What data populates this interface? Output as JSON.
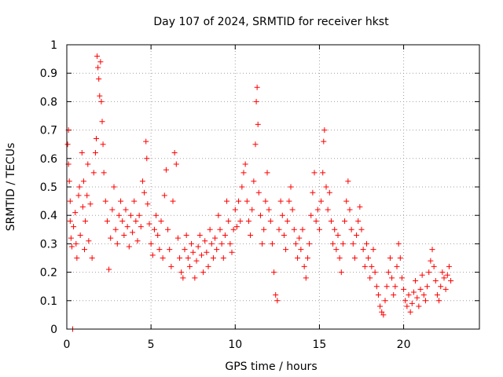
{
  "chart_data": {
    "type": "scatter",
    "title": "Day 107 of 2024, SRMTID for receiver hkst",
    "xlabel": "GPS time / hours",
    "ylabel": "SRMTID / TECUs",
    "xlim": [
      0,
      24.5
    ],
    "ylim": [
      0,
      1
    ],
    "grid": true,
    "marker": "+",
    "color": "#ff0000",
    "x_ticks": [
      {
        "value": 0,
        "label": "0"
      },
      {
        "value": 5,
        "label": "5"
      },
      {
        "value": 10,
        "label": "10"
      },
      {
        "value": 15,
        "label": "15"
      },
      {
        "value": 20,
        "label": "20"
      }
    ],
    "y_ticks": [
      {
        "value": 0,
        "label": "0"
      },
      {
        "value": 0.1,
        "label": "0.1"
      },
      {
        "value": 0.2,
        "label": "0.2"
      },
      {
        "value": 0.3,
        "label": "0.3"
      },
      {
        "value": 0.4,
        "label": "0.4"
      },
      {
        "value": 0.5,
        "label": "0.5"
      },
      {
        "value": 0.6,
        "label": "0.6"
      },
      {
        "value": 0.7,
        "label": "0.7"
      },
      {
        "value": 0.8,
        "label": "0.8"
      },
      {
        "value": 0.9,
        "label": "0.9"
      },
      {
        "value": 1,
        "label": "1"
      }
    ],
    "series": [
      {
        "name": "SRMTID",
        "points": [
          [
            0.05,
            0.65
          ],
          [
            0.1,
            0.7
          ],
          [
            0.1,
            0.58
          ],
          [
            0.15,
            0.52
          ],
          [
            0.2,
            0.45
          ],
          [
            0.2,
            0.38
          ],
          [
            0.25,
            0.32
          ],
          [
            0.3,
            0.29
          ],
          [
            0.35,
            0.0
          ],
          [
            0.4,
            0.36
          ],
          [
            0.5,
            0.41
          ],
          [
            0.55,
            0.3
          ],
          [
            0.6,
            0.25
          ],
          [
            0.7,
            0.47
          ],
          [
            0.75,
            0.5
          ],
          [
            0.8,
            0.33
          ],
          [
            0.9,
            0.62
          ],
          [
            0.95,
            0.43
          ],
          [
            1.0,
            0.52
          ],
          [
            1.05,
            0.28
          ],
          [
            1.1,
            0.38
          ],
          [
            1.2,
            0.47
          ],
          [
            1.25,
            0.58
          ],
          [
            1.3,
            0.31
          ],
          [
            1.4,
            0.44
          ],
          [
            1.5,
            0.25
          ],
          [
            1.6,
            0.55
          ],
          [
            1.7,
            0.62
          ],
          [
            1.75,
            0.67
          ],
          [
            1.8,
            0.96
          ],
          [
            1.85,
            0.92
          ],
          [
            1.9,
            0.88
          ],
          [
            1.95,
            0.82
          ],
          [
            2.0,
            0.94
          ],
          [
            2.05,
            0.8
          ],
          [
            2.1,
            0.73
          ],
          [
            2.15,
            0.65
          ],
          [
            2.2,
            0.55
          ],
          [
            2.3,
            0.45
          ],
          [
            2.4,
            0.38
          ],
          [
            2.5,
            0.21
          ],
          [
            2.6,
            0.32
          ],
          [
            2.7,
            0.42
          ],
          [
            2.8,
            0.5
          ],
          [
            2.9,
            0.35
          ],
          [
            3.0,
            0.3
          ],
          [
            3.1,
            0.4
          ],
          [
            3.2,
            0.45
          ],
          [
            3.3,
            0.38
          ],
          [
            3.4,
            0.33
          ],
          [
            3.5,
            0.42
          ],
          [
            3.6,
            0.36
          ],
          [
            3.7,
            0.29
          ],
          [
            3.8,
            0.4
          ],
          [
            3.9,
            0.34
          ],
          [
            4.0,
            0.45
          ],
          [
            4.1,
            0.38
          ],
          [
            4.2,
            0.31
          ],
          [
            4.3,
            0.4
          ],
          [
            4.4,
            0.36
          ],
          [
            4.5,
            0.52
          ],
          [
            4.6,
            0.48
          ],
          [
            4.7,
            0.66
          ],
          [
            4.75,
            0.6
          ],
          [
            4.8,
            0.44
          ],
          [
            4.9,
            0.37
          ],
          [
            5.0,
            0.3
          ],
          [
            5.1,
            0.26
          ],
          [
            5.2,
            0.35
          ],
          [
            5.3,
            0.4
          ],
          [
            5.4,
            0.33
          ],
          [
            5.5,
            0.28
          ],
          [
            5.6,
            0.38
          ],
          [
            5.7,
            0.25
          ],
          [
            5.8,
            0.47
          ],
          [
            5.9,
            0.56
          ],
          [
            6.0,
            0.35
          ],
          [
            6.1,
            0.28
          ],
          [
            6.2,
            0.22
          ],
          [
            6.3,
            0.45
          ],
          [
            6.4,
            0.62
          ],
          [
            6.5,
            0.58
          ],
          [
            6.6,
            0.32
          ],
          [
            6.7,
            0.25
          ],
          [
            6.8,
            0.2
          ],
          [
            6.9,
            0.18
          ],
          [
            7.0,
            0.28
          ],
          [
            7.1,
            0.33
          ],
          [
            7.2,
            0.25
          ],
          [
            7.3,
            0.22
          ],
          [
            7.4,
            0.3
          ],
          [
            7.5,
            0.27
          ],
          [
            7.6,
            0.18
          ],
          [
            7.7,
            0.24
          ],
          [
            7.8,
            0.29
          ],
          [
            7.9,
            0.33
          ],
          [
            8.0,
            0.26
          ],
          [
            8.1,
            0.2
          ],
          [
            8.2,
            0.31
          ],
          [
            8.3,
            0.27
          ],
          [
            8.4,
            0.22
          ],
          [
            8.5,
            0.35
          ],
          [
            8.6,
            0.3
          ],
          [
            8.7,
            0.25
          ],
          [
            8.8,
            0.32
          ],
          [
            8.9,
            0.28
          ],
          [
            9.0,
            0.4
          ],
          [
            9.1,
            0.35
          ],
          [
            9.2,
            0.3
          ],
          [
            9.3,
            0.25
          ],
          [
            9.4,
            0.33
          ],
          [
            9.5,
            0.45
          ],
          [
            9.6,
            0.38
          ],
          [
            9.7,
            0.3
          ],
          [
            9.8,
            0.27
          ],
          [
            9.9,
            0.35
          ],
          [
            10.0,
            0.42
          ],
          [
            10.1,
            0.36
          ],
          [
            10.2,
            0.45
          ],
          [
            10.3,
            0.38
          ],
          [
            10.4,
            0.5
          ],
          [
            10.5,
            0.55
          ],
          [
            10.6,
            0.58
          ],
          [
            10.7,
            0.45
          ],
          [
            10.8,
            0.38
          ],
          [
            10.9,
            0.33
          ],
          [
            11.0,
            0.42
          ],
          [
            11.1,
            0.52
          ],
          [
            11.2,
            0.65
          ],
          [
            11.25,
            0.8
          ],
          [
            11.3,
            0.85
          ],
          [
            11.35,
            0.72
          ],
          [
            11.4,
            0.48
          ],
          [
            11.5,
            0.4
          ],
          [
            11.6,
            0.3
          ],
          [
            11.7,
            0.35
          ],
          [
            11.8,
            0.45
          ],
          [
            11.9,
            0.55
          ],
          [
            12.0,
            0.42
          ],
          [
            12.1,
            0.38
          ],
          [
            12.2,
            0.3
          ],
          [
            12.3,
            0.2
          ],
          [
            12.4,
            0.12
          ],
          [
            12.5,
            0.1
          ],
          [
            12.6,
            0.35
          ],
          [
            12.7,
            0.45
          ],
          [
            12.8,
            0.4
          ],
          [
            12.9,
            0.33
          ],
          [
            13.0,
            0.28
          ],
          [
            13.1,
            0.38
          ],
          [
            13.2,
            0.45
          ],
          [
            13.3,
            0.5
          ],
          [
            13.4,
            0.42
          ],
          [
            13.5,
            0.35
          ],
          [
            13.6,
            0.3
          ],
          [
            13.7,
            0.25
          ],
          [
            13.8,
            0.32
          ],
          [
            13.9,
            0.28
          ],
          [
            14.0,
            0.35
          ],
          [
            14.1,
            0.22
          ],
          [
            14.2,
            0.18
          ],
          [
            14.3,
            0.25
          ],
          [
            14.4,
            0.3
          ],
          [
            14.5,
            0.4
          ],
          [
            14.6,
            0.48
          ],
          [
            14.7,
            0.55
          ],
          [
            14.8,
            0.38
          ],
          [
            14.9,
            0.42
          ],
          [
            15.0,
            0.35
          ],
          [
            15.1,
            0.45
          ],
          [
            15.2,
            0.55
          ],
          [
            15.25,
            0.66
          ],
          [
            15.3,
            0.7
          ],
          [
            15.4,
            0.5
          ],
          [
            15.5,
            0.42
          ],
          [
            15.6,
            0.48
          ],
          [
            15.7,
            0.38
          ],
          [
            15.8,
            0.3
          ],
          [
            15.9,
            0.35
          ],
          [
            16.0,
            0.28
          ],
          [
            16.1,
            0.33
          ],
          [
            16.2,
            0.25
          ],
          [
            16.3,
            0.2
          ],
          [
            16.4,
            0.3
          ],
          [
            16.5,
            0.38
          ],
          [
            16.6,
            0.45
          ],
          [
            16.7,
            0.52
          ],
          [
            16.8,
            0.42
          ],
          [
            16.9,
            0.35
          ],
          [
            17.0,
            0.3
          ],
          [
            17.1,
            0.25
          ],
          [
            17.2,
            0.33
          ],
          [
            17.3,
            0.38
          ],
          [
            17.4,
            0.43
          ],
          [
            17.5,
            0.35
          ],
          [
            17.6,
            0.28
          ],
          [
            17.7,
            0.22
          ],
          [
            17.8,
            0.3
          ],
          [
            17.9,
            0.25
          ],
          [
            18.0,
            0.18
          ],
          [
            18.1,
            0.22
          ],
          [
            18.2,
            0.28
          ],
          [
            18.3,
            0.2
          ],
          [
            18.4,
            0.15
          ],
          [
            18.5,
            0.12
          ],
          [
            18.6,
            0.08
          ],
          [
            18.7,
            0.06
          ],
          [
            18.8,
            0.05
          ],
          [
            18.9,
            0.1
          ],
          [
            19.0,
            0.15
          ],
          [
            19.1,
            0.2
          ],
          [
            19.2,
            0.25
          ],
          [
            19.3,
            0.18
          ],
          [
            19.4,
            0.12
          ],
          [
            19.5,
            0.15
          ],
          [
            19.6,
            0.22
          ],
          [
            19.7,
            0.3
          ],
          [
            19.8,
            0.25
          ],
          [
            19.9,
            0.18
          ],
          [
            20.0,
            0.14
          ],
          [
            20.1,
            0.1
          ],
          [
            20.2,
            0.08
          ],
          [
            20.3,
            0.12
          ],
          [
            20.4,
            0.06
          ],
          [
            20.5,
            0.09
          ],
          [
            20.6,
            0.13
          ],
          [
            20.7,
            0.17
          ],
          [
            20.8,
            0.11
          ],
          [
            20.9,
            0.08
          ],
          [
            21.0,
            0.14
          ],
          [
            21.1,
            0.19
          ],
          [
            21.2,
            0.12
          ],
          [
            21.3,
            0.1
          ],
          [
            21.4,
            0.15
          ],
          [
            21.5,
            0.2
          ],
          [
            21.6,
            0.24
          ],
          [
            21.7,
            0.28
          ],
          [
            21.8,
            0.22
          ],
          [
            21.9,
            0.17
          ],
          [
            22.0,
            0.12
          ],
          [
            22.1,
            0.1
          ],
          [
            22.2,
            0.15
          ],
          [
            22.3,
            0.2
          ],
          [
            22.4,
            0.18
          ],
          [
            22.5,
            0.14
          ],
          [
            22.6,
            0.19
          ],
          [
            22.7,
            0.22
          ],
          [
            22.8,
            0.17
          ]
        ]
      }
    ]
  }
}
